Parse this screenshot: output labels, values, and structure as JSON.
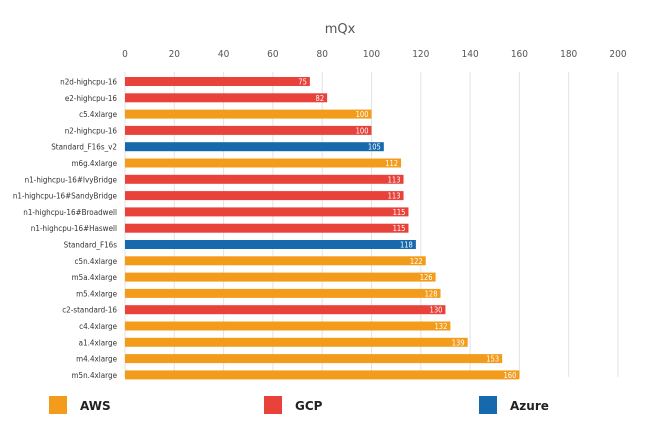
{
  "chart_data": {
    "type": "bar",
    "orientation": "horizontal",
    "title": "mQx",
    "xlim": [
      0,
      200
    ],
    "x_ticks": [
      0,
      20,
      40,
      60,
      80,
      100,
      120,
      140,
      160,
      180,
      200
    ],
    "grid": true,
    "legend_position": "bottom",
    "categories": [
      "n2d-highcpu-16",
      "e2-highcpu-16",
      "c5.4xlarge",
      "n2-highcpu-16",
      "Standard_F16s_v2",
      "m6g.4xlarge",
      "n1-highcpu-16#IvyBridge",
      "n1-highcpu-16#SandyBridge",
      "n1-highcpu-16#Broadwell",
      "n1-highcpu-16#Haswell",
      "Standard_F16s",
      "c5n.4xlarge",
      "m5a.4xlarge",
      "m5.4xlarge",
      "c2-standard-16",
      "c4.4xlarge",
      "a1.4xlarge",
      "m4.4xlarge",
      "m5n.4xlarge"
    ],
    "values": [
      75,
      82,
      100,
      100,
      105,
      112,
      113,
      113,
      115,
      115,
      118,
      122,
      126,
      128,
      130,
      132,
      139,
      153,
      160
    ],
    "value_labels": [
      "75",
      "82",
      "100",
      "100",
      "105",
      "112",
      "113",
      "113",
      "115",
      "115",
      "118",
      "122",
      "126",
      "128",
      "130",
      "132",
      "139",
      "153",
      "160"
    ],
    "providers": [
      "GCP",
      "GCP",
      "AWS",
      "GCP",
      "Azure",
      "AWS",
      "GCP",
      "GCP",
      "GCP",
      "GCP",
      "Azure",
      "AWS",
      "AWS",
      "AWS",
      "GCP",
      "AWS",
      "AWS",
      "AWS",
      "AWS"
    ],
    "legend": [
      {
        "name": "AWS",
        "color": "#f39c1c"
      },
      {
        "name": "GCP",
        "color": "#e8423a"
      },
      {
        "name": "Azure",
        "color": "#1769ad"
      }
    ]
  }
}
